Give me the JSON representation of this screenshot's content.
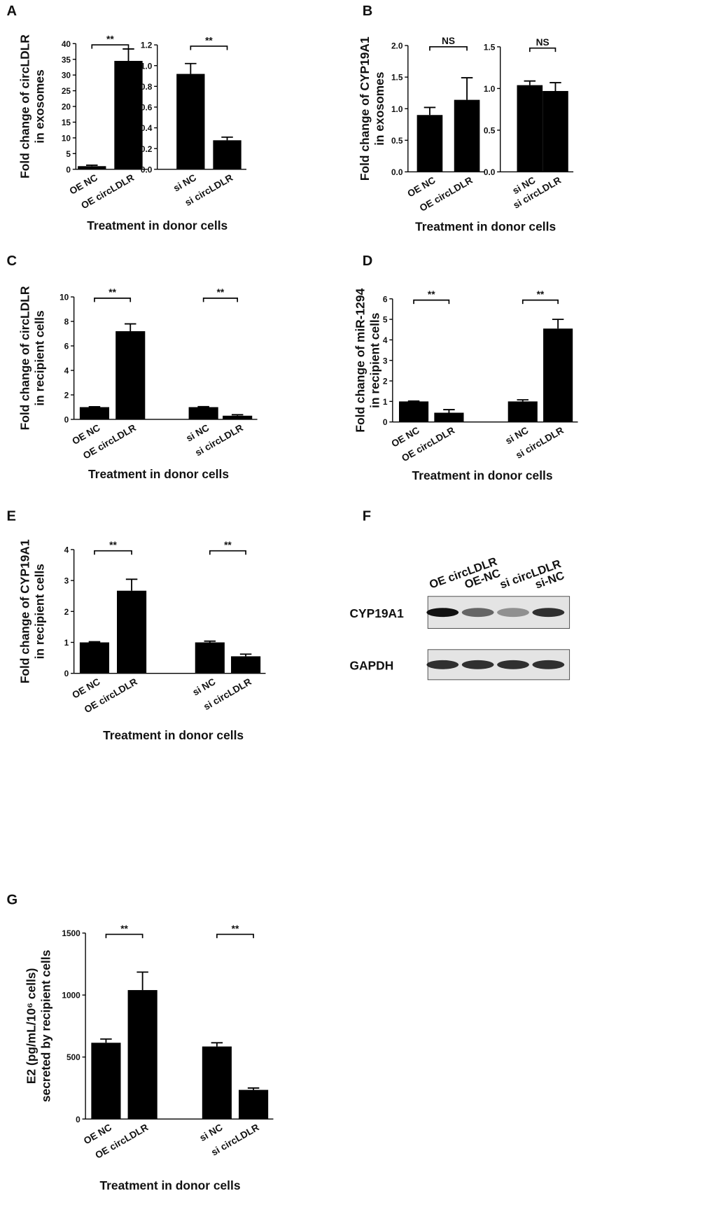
{
  "chart_data": [
    {
      "panel": "A",
      "type": "bar",
      "ylabel": [
        "Fold change of circLDLR",
        "in exosomes"
      ],
      "xlabel": "Treatment in donor cells",
      "color": "#000000",
      "groups": [
        {
          "categories": [
            "OE NC",
            "OE circLDLR"
          ],
          "values": [
            1.0,
            34.5
          ],
          "errors": [
            0.3,
            3.8
          ],
          "significance": "**",
          "ylim": [
            0,
            40
          ],
          "yticks": [
            0,
            5,
            10,
            15,
            20,
            25,
            30,
            35,
            40
          ]
        },
        {
          "categories": [
            "si NC",
            "si circLDLR"
          ],
          "values": [
            0.92,
            0.28
          ],
          "errors": [
            0.1,
            0.03
          ],
          "significance": "**",
          "ylim": [
            0,
            1.2
          ],
          "yticks": [
            {
              "value": 0,
              "label": "0.0"
            },
            0.2,
            0.4,
            0.6,
            0.8,
            {
              "value": 1,
              "label": "1.0"
            },
            1.2
          ]
        }
      ]
    },
    {
      "panel": "B",
      "type": "bar",
      "ylabel": [
        "Fold change of CYP19A1",
        "in exosomes"
      ],
      "xlabel": "Treatment in donor cells",
      "color": "#000000",
      "groups": [
        {
          "categories": [
            "OE NC",
            "OE circLDLR"
          ],
          "values": [
            0.9,
            1.14
          ],
          "errors": [
            0.12,
            0.35
          ],
          "significance": "NS",
          "ylim": [
            0,
            2
          ],
          "yticks": [
            {
              "value": 0,
              "label": "0.0"
            },
            0.5,
            {
              "value": 1,
              "label": "1.0"
            },
            1.5,
            {
              "value": 2,
              "label": "2.0"
            }
          ]
        },
        {
          "categories": [
            "si NC",
            "si circLDLR"
          ],
          "values": [
            1.04,
            0.97
          ],
          "errors": [
            0.05,
            0.1
          ],
          "significance": "NS",
          "ylim": [
            0,
            1.5
          ],
          "yticks": [
            {
              "value": 0,
              "label": "0.0"
            },
            0.5,
            {
              "value": 1,
              "label": "1.0"
            },
            1.5
          ]
        }
      ]
    },
    {
      "panel": "C",
      "type": "bar",
      "ylabel": [
        "Fold change of circLDLR",
        "in recipient cells"
      ],
      "xlabel": "Treatment in donor cells",
      "color": "#000000",
      "ylim": [
        0,
        10
      ],
      "yticks": [
        0,
        2,
        4,
        6,
        8,
        10
      ],
      "groups": [
        {
          "categories": [
            "OE NC",
            "OE circLDLR"
          ],
          "values": [
            1.0,
            7.2
          ],
          "errors": [
            0.03,
            0.6
          ],
          "significance": "**"
        },
        {
          "categories": [
            "si NC",
            "si circLDLR"
          ],
          "values": [
            1.0,
            0.3
          ],
          "errors": [
            0.04,
            0.08
          ],
          "significance": "**"
        }
      ]
    },
    {
      "panel": "D",
      "type": "bar",
      "ylabel": [
        "Fold change of miR-1294",
        "in recipient cells"
      ],
      "xlabel": "Treatment in donor cells",
      "color": "#000000",
      "ylim": [
        0,
        6
      ],
      "yticks": [
        0,
        1,
        2,
        3,
        4,
        5,
        6
      ],
      "groups": [
        {
          "categories": [
            "OE NC",
            "OE circLDLR"
          ],
          "values": [
            1.0,
            0.45
          ],
          "errors": [
            0.02,
            0.15
          ],
          "significance": "**"
        },
        {
          "categories": [
            "si NC",
            "si circLDLR"
          ],
          "values": [
            1.0,
            4.55
          ],
          "errors": [
            0.08,
            0.45
          ],
          "significance": "**"
        }
      ]
    },
    {
      "panel": "E",
      "type": "bar",
      "ylabel": [
        "Fold change of CYP19A1",
        "in recipient cells"
      ],
      "xlabel": "Treatment in donor cells",
      "color": "#000000",
      "ylim": [
        0,
        4
      ],
      "yticks": [
        0,
        1,
        2,
        3,
        4
      ],
      "groups": [
        {
          "categories": [
            "OE NC",
            "OE circLDLR"
          ],
          "values": [
            1.0,
            2.67
          ],
          "errors": [
            0.02,
            0.37
          ],
          "significance": "**"
        },
        {
          "categories": [
            "si NC",
            "si circLDLR"
          ],
          "values": [
            1.0,
            0.55
          ],
          "errors": [
            0.04,
            0.07
          ],
          "significance": "**"
        }
      ]
    },
    {
      "panel": "F",
      "type": "blot",
      "lanes": [
        "OE circLDLR",
        "OE-NC",
        "si circLDLR",
        "si-NC"
      ],
      "rows": [
        "CYP19A1",
        "GAPDH"
      ]
    },
    {
      "panel": "G",
      "type": "bar",
      "ylabel": [
        "E2 (pg/mL/10⁶ cells)",
        "secreted by recipient cells"
      ],
      "xlabel": "Treatment in donor cells",
      "color": "#000000",
      "ylim": [
        0,
        1500
      ],
      "yticks": [
        0,
        500,
        1000,
        1500
      ],
      "groups": [
        {
          "categories": [
            "OE NC",
            "OE circLDLR"
          ],
          "values": [
            615,
            1040
          ],
          "errors": [
            30,
            145
          ],
          "significance": "**"
        },
        {
          "categories": [
            "si NC",
            "si circLDLR"
          ],
          "values": [
            585,
            235
          ],
          "errors": [
            30,
            15
          ],
          "significance": "**"
        }
      ]
    }
  ]
}
